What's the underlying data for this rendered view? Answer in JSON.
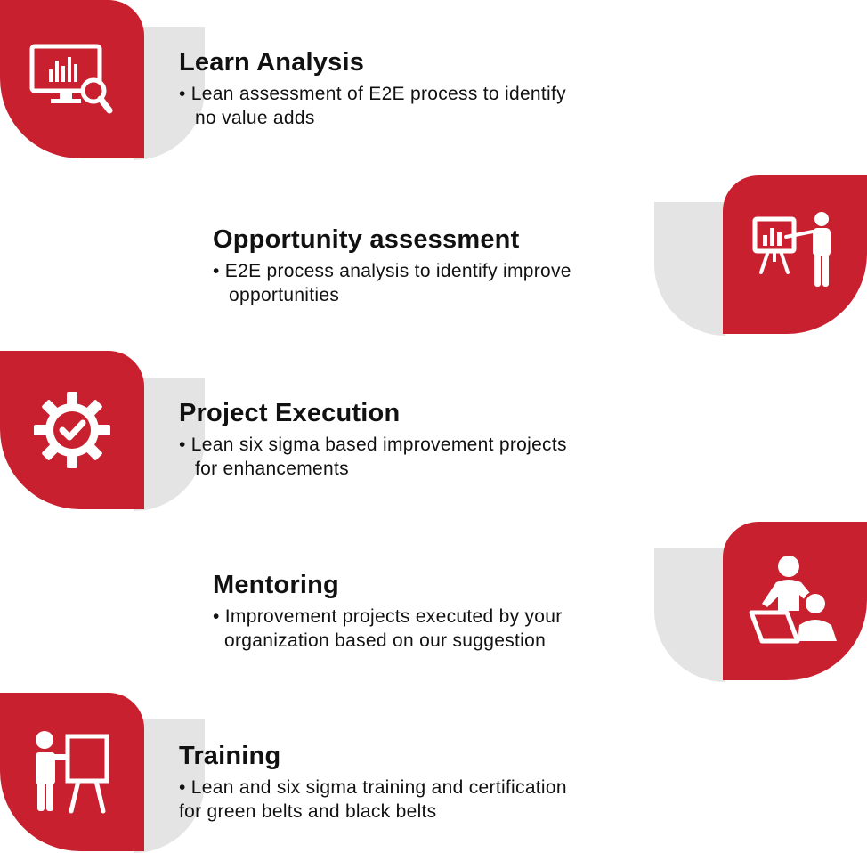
{
  "items": [
    {
      "title": "Learn Analysis",
      "line1": "• Lean assessment of E2E process to identify",
      "line2": "no value adds",
      "icon": "monitor-analysis-icon"
    },
    {
      "title": "Opportunity assessment",
      "line1": "• E2E process analysis to identify improve",
      "line2": "opportunities",
      "icon": "presenter-chart-icon"
    },
    {
      "title": "Project Execution",
      "line1": "• Lean six sigma based improvement projects",
      "line2": "for enhancements",
      "icon": "gear-check-icon"
    },
    {
      "title": "Mentoring",
      "line1": "• Improvement projects executed by your",
      "line2": "organization based on our suggestion",
      "icon": "mentor-laptop-icon"
    },
    {
      "title": "Training",
      "line1": "• Lean and six sigma training and certification",
      "line2": "for green belts and black belts",
      "icon": "trainer-board-icon"
    }
  ],
  "colors": {
    "accent": "#c8202f",
    "shadow": "#e4e4e4",
    "text": "#111111"
  }
}
